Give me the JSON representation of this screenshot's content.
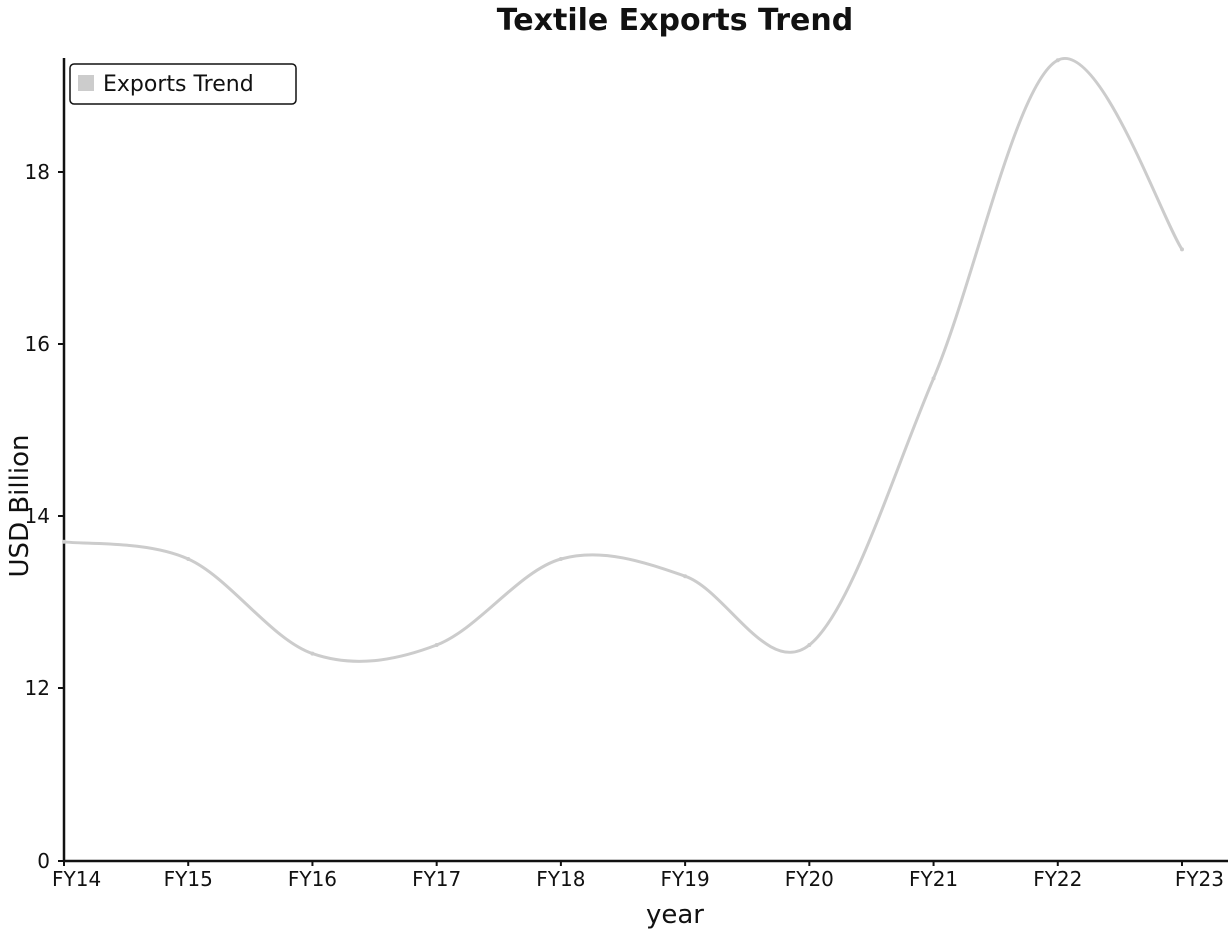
{
  "chart_data": {
    "type": "line",
    "title": "Textile Exports Trend",
    "xlabel": "year",
    "ylabel": "USD Billion",
    "categories": [
      "FY14",
      "FY15",
      "FY16",
      "FY17",
      "FY18",
      "FY19",
      "FY20",
      "FY21",
      "FY22",
      "FY23"
    ],
    "series": [
      {
        "name": "Exports Trend",
        "values": [
          13.7,
          13.5,
          12.4,
          12.5,
          13.5,
          13.3,
          12.5,
          15.6,
          19.3,
          17.1
        ]
      }
    ],
    "yticks": [
      "0",
      "12",
      "14",
      "16",
      "18"
    ],
    "legend": {
      "position": "top-left",
      "label": "Exports Trend"
    },
    "grid": false,
    "colors": {
      "line": "#cccccc",
      "axis": "#111111"
    }
  }
}
